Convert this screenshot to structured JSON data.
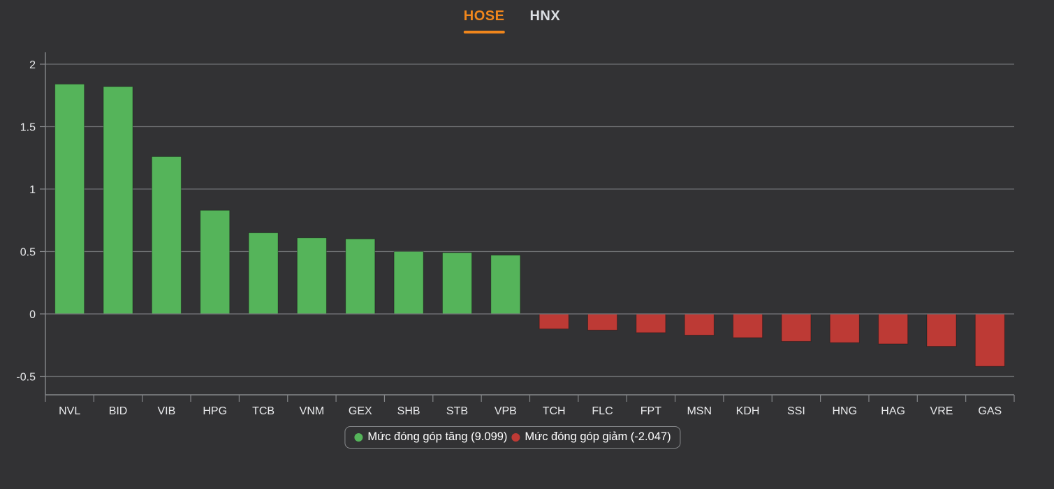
{
  "tabs": [
    {
      "label": "HOSE",
      "active": true
    },
    {
      "label": "HNX",
      "active": false
    }
  ],
  "colors": {
    "background": "#323234",
    "positive": "#55b45a",
    "negative": "#bd3a35",
    "tab_active": "#f0861c",
    "tab_inactive": "#dbdfe3",
    "grid": "#6f7173",
    "axis": "#85878a",
    "label_text": "#e9eaec",
    "legend_border": "#87898c",
    "legend_text": "#ffffff"
  },
  "chart_data": {
    "type": "bar",
    "title": "",
    "xlabel": "",
    "ylabel": "",
    "grid": true,
    "legend_position": "bottom",
    "categories": [
      "NVL",
      "BID",
      "VIB",
      "HPG",
      "TCB",
      "VNM",
      "GEX",
      "SHB",
      "STB",
      "VPB",
      "TCH",
      "FLC",
      "FPT",
      "MSN",
      "KDH",
      "SSI",
      "HNG",
      "HAG",
      "VRE",
      "GAS"
    ],
    "values": [
      1.84,
      1.82,
      1.26,
      0.83,
      0.65,
      0.61,
      0.6,
      0.5,
      0.49,
      0.47,
      -0.12,
      -0.13,
      -0.15,
      -0.17,
      -0.19,
      -0.22,
      -0.23,
      -0.24,
      -0.26,
      -0.42
    ],
    "ylim": [
      -0.65,
      2.1
    ],
    "yticks": [
      2,
      1.5,
      1,
      0.5,
      0,
      -0.5
    ],
    "ytick_labels": [
      "2",
      "1.5",
      "1",
      "0.5",
      "0",
      "-0.5"
    ],
    "legend": [
      {
        "id": "positive",
        "label": "Mức đóng góp tăng (9.099)",
        "color": "#55b45a"
      },
      {
        "id": "negative",
        "label": "Mức đóng góp giảm (-2.047)",
        "color": "#bd3a35"
      }
    ]
  }
}
